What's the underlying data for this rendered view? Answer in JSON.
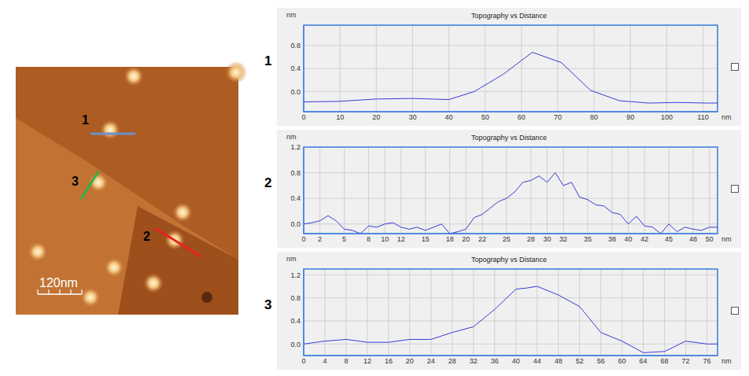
{
  "micrograph": {
    "scale_bar": "120nm",
    "profiles": [
      {
        "label": "1",
        "color": "#6d8fd0"
      },
      {
        "label": "2",
        "color": "#e8231f"
      },
      {
        "label": "3",
        "color": "#2fb04a"
      }
    ]
  },
  "chart_data": [
    {
      "type": "line",
      "annotation": "1",
      "title": "Topography vs Distance",
      "y_label": "nm",
      "x_label": "nm",
      "color": "#3a3ad6",
      "x": [
        0,
        10,
        20,
        30,
        40,
        47,
        55,
        63,
        71,
        79,
        87,
        95,
        103,
        111,
        114
      ],
      "values": [
        -0.18,
        -0.17,
        -0.13,
        -0.12,
        -0.14,
        0.0,
        0.3,
        0.68,
        0.5,
        0.02,
        -0.16,
        -0.2,
        -0.19,
        -0.2,
        -0.2
      ],
      "xlim": [
        0,
        114
      ],
      "xticks": [
        0,
        10,
        20,
        30,
        40,
        50,
        60,
        70,
        80,
        90,
        100,
        110
      ],
      "ylim": [
        -0.35,
        1.15
      ],
      "yticks": [
        {
          "value": 0,
          "label": "0.0"
        },
        0.4,
        0.8
      ],
      "grid": true
    },
    {
      "type": "line",
      "annotation": "2",
      "title": "Topography vs Distance",
      "y_label": "nm",
      "x_label": "nm",
      "color": "#3a3ad6",
      "x": [
        0,
        1,
        2,
        3,
        4,
        5,
        6,
        7,
        8,
        9,
        10,
        11,
        12,
        13,
        14,
        15,
        16,
        17,
        18,
        19,
        20,
        21,
        22,
        23,
        24,
        25,
        26,
        27,
        28,
        29,
        30,
        31,
        32,
        33,
        34,
        35,
        36,
        37,
        38,
        39,
        40,
        41,
        42,
        43,
        44,
        45,
        46,
        47,
        48,
        49,
        50,
        51
      ],
      "values": [
        0.0,
        0.02,
        0.05,
        0.13,
        0.05,
        -0.08,
        -0.1,
        -0.15,
        -0.03,
        -0.05,
        0.0,
        0.02,
        -0.05,
        -0.08,
        -0.05,
        -0.1,
        -0.05,
        0.0,
        -0.15,
        -0.12,
        -0.08,
        0.1,
        0.15,
        0.25,
        0.35,
        0.4,
        0.5,
        0.65,
        0.68,
        0.75,
        0.65,
        0.8,
        0.6,
        0.65,
        0.42,
        0.38,
        0.3,
        0.28,
        0.18,
        0.15,
        0.0,
        0.12,
        -0.03,
        -0.05,
        -0.15,
        0.0,
        -0.12,
        -0.05,
        -0.08,
        -0.1,
        -0.05,
        -0.05
      ],
      "xlim": [
        0,
        51
      ],
      "xticks": [
        0,
        2,
        5,
        8,
        10,
        12,
        15,
        18,
        20,
        22,
        25,
        28,
        30,
        32,
        35,
        38,
        40,
        42,
        45,
        48,
        50
      ],
      "ylim": [
        -0.15,
        1.2
      ],
      "yticks": [
        {
          "value": 0,
          "label": "0.0"
        },
        0.4,
        0.8,
        1.2
      ],
      "grid": true
    },
    {
      "type": "line",
      "annotation": "3",
      "title": "Topography vs Distance",
      "y_label": "nm",
      "x_label": "nm",
      "color": "#3a3ad6",
      "x": [
        0,
        4,
        8,
        12,
        16,
        20,
        24,
        28,
        32,
        36,
        40,
        42,
        44,
        48,
        52,
        56,
        60,
        64,
        68,
        72,
        76,
        78
      ],
      "values": [
        0.0,
        0.05,
        0.08,
        0.03,
        0.03,
        0.08,
        0.08,
        0.2,
        0.3,
        0.6,
        0.95,
        0.97,
        1.0,
        0.85,
        0.65,
        0.2,
        0.05,
        -0.15,
        -0.13,
        0.05,
        0.0,
        0.0
      ],
      "xlim": [
        0,
        78
      ],
      "xticks": [
        0,
        4,
        8,
        12,
        16,
        20,
        24,
        28,
        32,
        36,
        40,
        44,
        48,
        52,
        56,
        60,
        64,
        68,
        72,
        76
      ],
      "ylim": [
        -0.2,
        1.3
      ],
      "yticks": [
        {
          "value": 0,
          "label": "0.0"
        },
        0.4,
        0.8,
        1.2
      ],
      "grid": true
    }
  ]
}
